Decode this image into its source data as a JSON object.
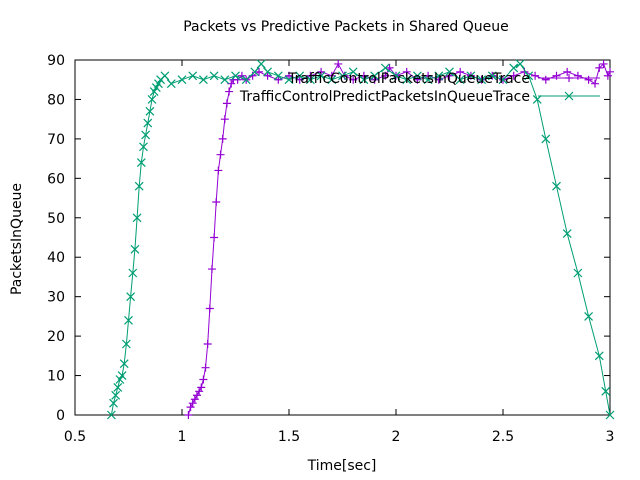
{
  "chart_data": {
    "type": "scatter",
    "title": "Packets vs Predictive Packets in Shared Queue",
    "xlabel": "Time[sec]",
    "ylabel": "PacketsInQueue",
    "xlim": [
      0.5,
      3
    ],
    "ylim": [
      0,
      90
    ],
    "xticks": [
      "0.5",
      "1",
      "1.5",
      "2",
      "2.5",
      "3"
    ],
    "yticks": [
      "0",
      "10",
      "20",
      "30",
      "40",
      "50",
      "60",
      "70",
      "80",
      "90"
    ],
    "legend_position": "top-right",
    "grid": false,
    "series": [
      {
        "name": "TrafficControlPacketsInQueueTrace",
        "color": "#9400d3",
        "marker": "plus",
        "points": [
          [
            1.03,
            0
          ],
          [
            1.04,
            2
          ],
          [
            1.05,
            3
          ],
          [
            1.06,
            4
          ],
          [
            1.07,
            5
          ],
          [
            1.08,
            6
          ],
          [
            1.09,
            7
          ],
          [
            1.1,
            9
          ],
          [
            1.11,
            12
          ],
          [
            1.12,
            18
          ],
          [
            1.13,
            27
          ],
          [
            1.14,
            37
          ],
          [
            1.15,
            45
          ],
          [
            1.16,
            54
          ],
          [
            1.17,
            62
          ],
          [
            1.18,
            66
          ],
          [
            1.19,
            70
          ],
          [
            1.2,
            75
          ],
          [
            1.21,
            79
          ],
          [
            1.22,
            82
          ],
          [
            1.23,
            84
          ],
          [
            1.24,
            85
          ],
          [
            1.26,
            85
          ],
          [
            1.28,
            86
          ],
          [
            1.3,
            85
          ],
          [
            1.33,
            86
          ],
          [
            1.36,
            87
          ],
          [
            1.4,
            86
          ],
          [
            1.45,
            85
          ],
          [
            1.5,
            86
          ],
          [
            1.55,
            85
          ],
          [
            1.6,
            86
          ],
          [
            1.65,
            87
          ],
          [
            1.7,
            86
          ],
          [
            1.73,
            89
          ],
          [
            1.76,
            86
          ],
          [
            1.8,
            85
          ],
          [
            1.85,
            86
          ],
          [
            1.9,
            85
          ],
          [
            1.95,
            86
          ],
          [
            1.97,
            88
          ],
          [
            2.0,
            86
          ],
          [
            2.05,
            87
          ],
          [
            2.1,
            85
          ],
          [
            2.15,
            86
          ],
          [
            2.2,
            85
          ],
          [
            2.25,
            86
          ],
          [
            2.3,
            87
          ],
          [
            2.35,
            86
          ],
          [
            2.4,
            85
          ],
          [
            2.45,
            86
          ],
          [
            2.5,
            85
          ],
          [
            2.55,
            86
          ],
          [
            2.6,
            87
          ],
          [
            2.65,
            86
          ],
          [
            2.7,
            85
          ],
          [
            2.75,
            86
          ],
          [
            2.8,
            87
          ],
          [
            2.85,
            86
          ],
          [
            2.9,
            85
          ],
          [
            2.93,
            84
          ],
          [
            2.95,
            88
          ],
          [
            2.97,
            89
          ],
          [
            2.99,
            86
          ],
          [
            3.0,
            87
          ]
        ]
      },
      {
        "name": "TrafficControlPredictPacketsInQueueTrace",
        "color": "#009e73",
        "marker": "cross",
        "points": [
          [
            0.67,
            0
          ],
          [
            0.68,
            3
          ],
          [
            0.69,
            5
          ],
          [
            0.7,
            7
          ],
          [
            0.71,
            9
          ],
          [
            0.72,
            10
          ],
          [
            0.73,
            13
          ],
          [
            0.74,
            18
          ],
          [
            0.75,
            24
          ],
          [
            0.76,
            30
          ],
          [
            0.77,
            36
          ],
          [
            0.78,
            42
          ],
          [
            0.79,
            50
          ],
          [
            0.8,
            58
          ],
          [
            0.81,
            64
          ],
          [
            0.82,
            68
          ],
          [
            0.83,
            71
          ],
          [
            0.84,
            74
          ],
          [
            0.85,
            77
          ],
          [
            0.86,
            80
          ],
          [
            0.87,
            82
          ],
          [
            0.88,
            83
          ],
          [
            0.89,
            84
          ],
          [
            0.9,
            85
          ],
          [
            0.92,
            86
          ],
          [
            0.95,
            84
          ],
          [
            1.0,
            85
          ],
          [
            1.05,
            86
          ],
          [
            1.1,
            85
          ],
          [
            1.15,
            86
          ],
          [
            1.2,
            85
          ],
          [
            1.25,
            86
          ],
          [
            1.3,
            85
          ],
          [
            1.34,
            87
          ],
          [
            1.37,
            89
          ],
          [
            1.4,
            87
          ],
          [
            1.45,
            86
          ],
          [
            1.5,
            85
          ],
          [
            1.55,
            86
          ],
          [
            1.6,
            85
          ],
          [
            1.65,
            86
          ],
          [
            1.7,
            85
          ],
          [
            1.75,
            86
          ],
          [
            1.8,
            87
          ],
          [
            1.85,
            85
          ],
          [
            1.9,
            86
          ],
          [
            1.95,
            88
          ],
          [
            2.0,
            86
          ],
          [
            2.05,
            85
          ],
          [
            2.1,
            86
          ],
          [
            2.15,
            85
          ],
          [
            2.2,
            86
          ],
          [
            2.25,
            87
          ],
          [
            2.3,
            85
          ],
          [
            2.35,
            86
          ],
          [
            2.4,
            85
          ],
          [
            2.45,
            86
          ],
          [
            2.5,
            85
          ],
          [
            2.55,
            88
          ],
          [
            2.58,
            89
          ],
          [
            2.62,
            86
          ],
          [
            2.66,
            80
          ],
          [
            2.7,
            70
          ],
          [
            2.75,
            58
          ],
          [
            2.8,
            46
          ],
          [
            2.85,
            36
          ],
          [
            2.9,
            25
          ],
          [
            2.95,
            15
          ],
          [
            2.98,
            6
          ],
          [
            3.0,
            0
          ]
        ]
      }
    ]
  }
}
